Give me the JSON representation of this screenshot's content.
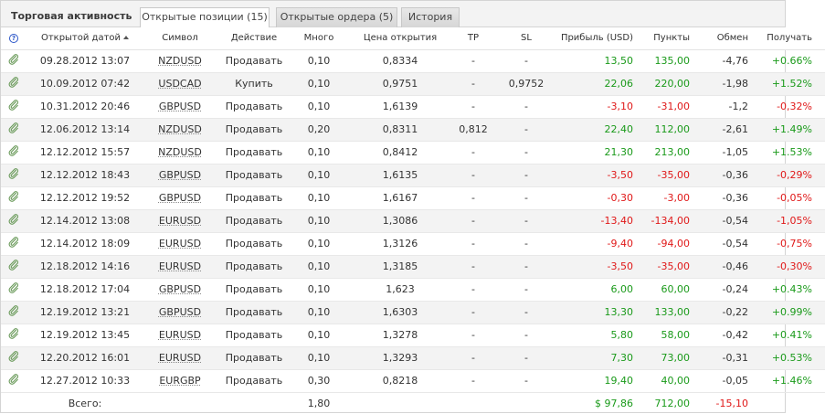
{
  "header": {
    "title": "Торговая активность",
    "tabs": [
      {
        "label": "Открытые позиции (15)",
        "active": true
      },
      {
        "label": "Открытые ордера (5)",
        "active": false
      },
      {
        "label": "История",
        "active": false
      }
    ]
  },
  "columns": {
    "info": "?",
    "opened": "Открытой датой",
    "symbol": "Символ",
    "action": "Действие",
    "lots": "Много",
    "open_price": "Цена открытия",
    "tp": "TP",
    "sl": "SL",
    "profit": "Прибыль (USD)",
    "points": "Пункты",
    "swap": "Обмен",
    "gain": "Получать"
  },
  "rows": [
    {
      "opened": "09.28.2012 13:07",
      "symbol": "NZDUSD",
      "action": "Продавать",
      "lots": "0,10",
      "open_price": "0,8334",
      "tp": "-",
      "sl": "-",
      "profit": "13,50",
      "points": "135,00",
      "swap": "-4,76",
      "gain": "+0.66%",
      "sign": "pos"
    },
    {
      "opened": "10.09.2012 07:42",
      "symbol": "USDCAD",
      "action": "Купить",
      "lots": "0,10",
      "open_price": "0,9751",
      "tp": "-",
      "sl": "0,9752",
      "profit": "22,06",
      "points": "220,00",
      "swap": "-1,98",
      "gain": "+1.52%",
      "sign": "pos"
    },
    {
      "opened": "10.31.2012 20:46",
      "symbol": "GBPUSD",
      "action": "Продавать",
      "lots": "0,10",
      "open_price": "1,6139",
      "tp": "-",
      "sl": "-",
      "profit": "-3,10",
      "points": "-31,00",
      "swap": "-1,2",
      "gain": "-0,32%",
      "sign": "neg"
    },
    {
      "opened": "12.06.2012 13:14",
      "symbol": "NZDUSD",
      "action": "Продавать",
      "lots": "0,20",
      "open_price": "0,8311",
      "tp": "0,812",
      "sl": "-",
      "profit": "22,40",
      "points": "112,00",
      "swap": "-2,61",
      "gain": "+1.49%",
      "sign": "pos"
    },
    {
      "opened": "12.12.2012 15:57",
      "symbol": "NZDUSD",
      "action": "Продавать",
      "lots": "0,10",
      "open_price": "0,8412",
      "tp": "-",
      "sl": "-",
      "profit": "21,30",
      "points": "213,00",
      "swap": "-1,05",
      "gain": "+1.53%",
      "sign": "pos"
    },
    {
      "opened": "12.12.2012 18:43",
      "symbol": "GBPUSD",
      "action": "Продавать",
      "lots": "0,10",
      "open_price": "1,6135",
      "tp": "-",
      "sl": "-",
      "profit": "-3,50",
      "points": "-35,00",
      "swap": "-0,36",
      "gain": "-0,29%",
      "sign": "neg"
    },
    {
      "opened": "12.12.2012 19:52",
      "symbol": "GBPUSD",
      "action": "Продавать",
      "lots": "0,10",
      "open_price": "1,6167",
      "tp": "-",
      "sl": "-",
      "profit": "-0,30",
      "points": "-3,00",
      "swap": "-0,36",
      "gain": "-0,05%",
      "sign": "neg"
    },
    {
      "opened": "12.14.2012 13:08",
      "symbol": "EURUSD",
      "action": "Продавать",
      "lots": "0,10",
      "open_price": "1,3086",
      "tp": "-",
      "sl": "-",
      "profit": "-13,40",
      "points": "-134,00",
      "swap": "-0,54",
      "gain": "-1,05%",
      "sign": "neg"
    },
    {
      "opened": "12.14.2012 18:09",
      "symbol": "EURUSD",
      "action": "Продавать",
      "lots": "0,10",
      "open_price": "1,3126",
      "tp": "-",
      "sl": "-",
      "profit": "-9,40",
      "points": "-94,00",
      "swap": "-0,54",
      "gain": "-0,75%",
      "sign": "neg"
    },
    {
      "opened": "12.18.2012 14:16",
      "symbol": "EURUSD",
      "action": "Продавать",
      "lots": "0,10",
      "open_price": "1,3185",
      "tp": "-",
      "sl": "-",
      "profit": "-3,50",
      "points": "-35,00",
      "swap": "-0,46",
      "gain": "-0,30%",
      "sign": "neg"
    },
    {
      "opened": "12.18.2012 17:04",
      "symbol": "GBPUSD",
      "action": "Продавать",
      "lots": "0,10",
      "open_price": "1,623",
      "tp": "-",
      "sl": "-",
      "profit": "6,00",
      "points": "60,00",
      "swap": "-0,24",
      "gain": "+0.43%",
      "sign": "pos"
    },
    {
      "opened": "12.19.2012 13:21",
      "symbol": "GBPUSD",
      "action": "Продавать",
      "lots": "0,10",
      "open_price": "1,6303",
      "tp": "-",
      "sl": "-",
      "profit": "13,30",
      "points": "133,00",
      "swap": "-0,22",
      "gain": "+0.99%",
      "sign": "pos"
    },
    {
      "opened": "12.19.2012 13:45",
      "symbol": "EURUSD",
      "action": "Продавать",
      "lots": "0,10",
      "open_price": "1,3278",
      "tp": "-",
      "sl": "-",
      "profit": "5,80",
      "points": "58,00",
      "swap": "-0,42",
      "gain": "+0.41%",
      "sign": "pos"
    },
    {
      "opened": "12.20.2012 16:01",
      "symbol": "EURUSD",
      "action": "Продавать",
      "lots": "0,10",
      "open_price": "1,3293",
      "tp": "-",
      "sl": "-",
      "profit": "7,30",
      "points": "73,00",
      "swap": "-0,31",
      "gain": "+0.53%",
      "sign": "pos"
    },
    {
      "opened": "12.27.2012 10:33",
      "symbol": "EURGBP",
      "action": "Продавать",
      "lots": "0,30",
      "open_price": "0,8218",
      "tp": "-",
      "sl": "-",
      "profit": "19,40",
      "points": "40,00",
      "swap": "-0,05",
      "gain": "+1.46%",
      "sign": "pos"
    }
  ],
  "totals": {
    "label": "Всего:",
    "lots": "1,80",
    "profit": "$ 97,86",
    "points": "712,00",
    "swap": "-15,10"
  },
  "colors": {
    "positive": "#1a9a1a",
    "negative": "#e01818",
    "row_alt": "#f3f3f3",
    "link_icon": "#6a9a5a"
  }
}
